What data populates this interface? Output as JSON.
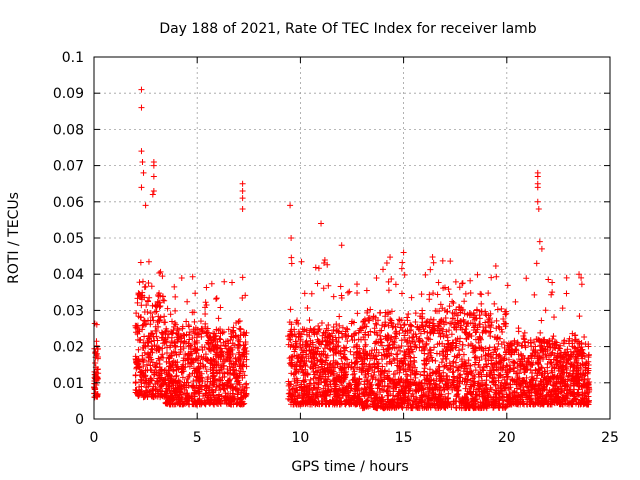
{
  "chart_data": {
    "type": "scatter",
    "title": "Day 188 of 2021, Rate Of TEC Index for receiver lamb",
    "xlabel": "GPS time / hours",
    "ylabel": "ROTI / TECUs",
    "xlim": [
      0,
      25
    ],
    "ylim": [
      0,
      0.1
    ],
    "x_ticks": [
      0,
      5,
      10,
      15,
      20,
      25
    ],
    "x_tick_labels": [
      "0",
      "5",
      "10",
      "15",
      "20",
      "25"
    ],
    "y_ticks": [
      0,
      0.01,
      0.02,
      0.03,
      0.04,
      0.05,
      0.06,
      0.07,
      0.08,
      0.09,
      0.1
    ],
    "y_tick_labels": [
      "0",
      "0.01",
      "0.02",
      "0.03",
      "0.04",
      "0.05",
      "0.06",
      "0.07",
      "0.08",
      "0.09",
      "0.1"
    ],
    "grid": true,
    "marker": "+",
    "series": [
      {
        "name": "ROTI",
        "color": "#ff0000",
        "segments": [
          {
            "x_start": 0.0,
            "x_end": 0.2,
            "y_base": [
              0.006,
              0.02
            ],
            "y_peak": 0.035
          },
          {
            "x_start": 2.0,
            "x_end": 3.4,
            "y_base": [
              0.006,
              0.035
            ],
            "y_peak": 0.045
          },
          {
            "x_start": 3.4,
            "x_end": 7.4,
            "y_base": [
              0.004,
              0.025
            ],
            "y_peak": 0.04
          },
          {
            "x_start": 9.4,
            "x_end": 13.0,
            "y_base": [
              0.004,
              0.025
            ],
            "y_peak": 0.045
          },
          {
            "x_start": 13.0,
            "x_end": 17.0,
            "y_base": [
              0.003,
              0.028
            ],
            "y_peak": 0.045
          },
          {
            "x_start": 17.0,
            "x_end": 20.0,
            "y_base": [
              0.003,
              0.03
            ],
            "y_peak": 0.045
          },
          {
            "x_start": 20.0,
            "x_end": 24.0,
            "y_base": [
              0.004,
              0.022
            ],
            "y_peak": 0.04
          }
        ],
        "highlights": [
          {
            "x": 2.3,
            "y": 0.091
          },
          {
            "x": 2.3,
            "y": 0.086
          },
          {
            "x": 2.3,
            "y": 0.074
          },
          {
            "x": 2.35,
            "y": 0.071
          },
          {
            "x": 2.4,
            "y": 0.068
          },
          {
            "x": 2.3,
            "y": 0.064
          },
          {
            "x": 2.5,
            "y": 0.059
          },
          {
            "x": 2.9,
            "y": 0.071
          },
          {
            "x": 2.9,
            "y": 0.07
          },
          {
            "x": 2.9,
            "y": 0.067
          },
          {
            "x": 2.9,
            "y": 0.063
          },
          {
            "x": 2.85,
            "y": 0.062
          },
          {
            "x": 7.2,
            "y": 0.065
          },
          {
            "x": 7.2,
            "y": 0.063
          },
          {
            "x": 7.2,
            "y": 0.061
          },
          {
            "x": 7.2,
            "y": 0.058
          },
          {
            "x": 9.5,
            "y": 0.059
          },
          {
            "x": 9.55,
            "y": 0.05
          },
          {
            "x": 11.0,
            "y": 0.054
          },
          {
            "x": 12.0,
            "y": 0.048
          },
          {
            "x": 15.0,
            "y": 0.046
          },
          {
            "x": 21.5,
            "y": 0.068
          },
          {
            "x": 21.5,
            "y": 0.067
          },
          {
            "x": 21.5,
            "y": 0.065
          },
          {
            "x": 21.5,
            "y": 0.064
          },
          {
            "x": 21.5,
            "y": 0.06
          },
          {
            "x": 21.55,
            "y": 0.058
          },
          {
            "x": 21.6,
            "y": 0.049
          },
          {
            "x": 21.7,
            "y": 0.047
          },
          {
            "x": 21.45,
            "y": 0.043
          },
          {
            "x": 23.5,
            "y": 0.04
          },
          {
            "x": 23.6,
            "y": 0.039
          },
          {
            "x": 22.9,
            "y": 0.039
          }
        ]
      }
    ]
  }
}
